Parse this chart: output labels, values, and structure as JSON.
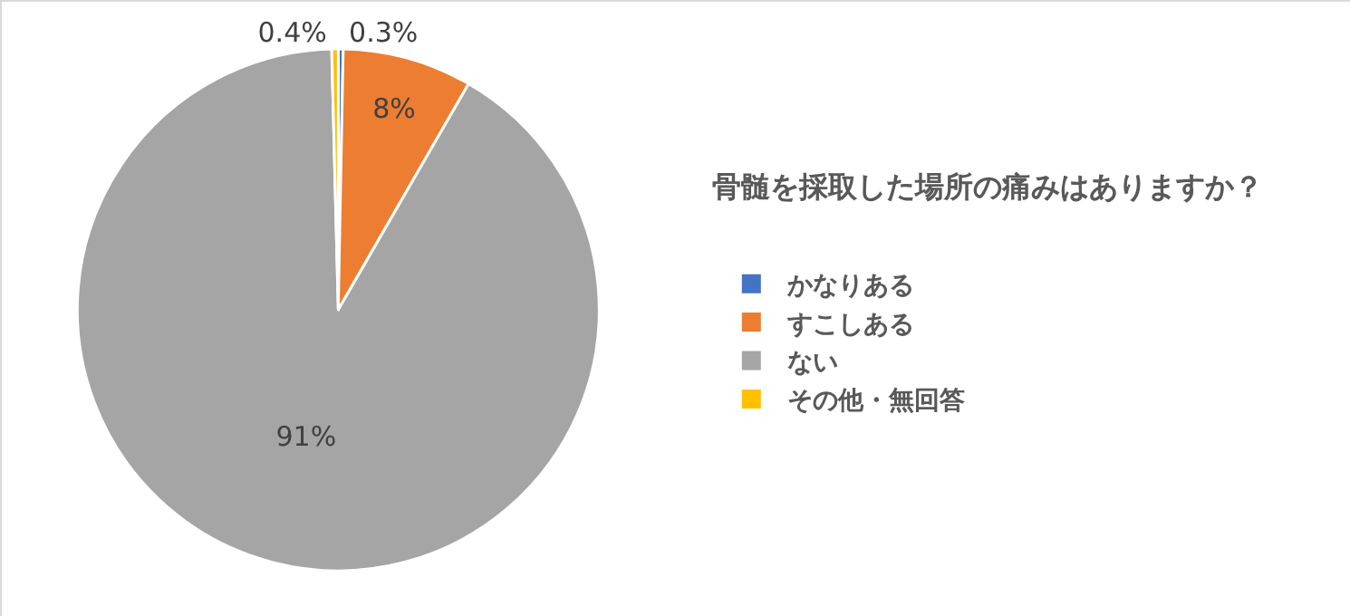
{
  "chart_data": {
    "type": "pie",
    "title": "骨髄を採取した場所の痛みはありますか？",
    "categories": [
      "かなりある",
      "すこしある",
      "ない",
      "その他・無回答"
    ],
    "values": [
      0.3,
      8,
      91,
      0.4
    ],
    "colors": [
      "#4472c4",
      "#ed7d31",
      "#a5a5a5",
      "#ffc000"
    ],
    "value_labels": [
      "0.3%",
      "8%",
      "91%",
      "0.4%"
    ],
    "legend": "right"
  }
}
